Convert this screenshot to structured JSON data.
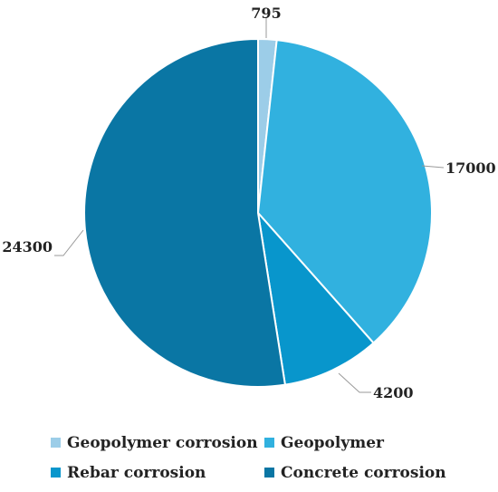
{
  "chart_data": {
    "type": "pie",
    "title": "",
    "categories": [
      "Geopolymer corrosion",
      "Geopolymer",
      "Rebar corrosion",
      "Concrete corrosion"
    ],
    "values": [
      795,
      17000,
      4200,
      24300
    ],
    "value_labels": [
      "795",
      "17000",
      "4200",
      "24300"
    ],
    "colors": [
      "#9ccde8",
      "#31b1df",
      "#0896cc",
      "#0a76a4"
    ],
    "legend_position": "bottom",
    "start_angle_deg": 0,
    "direction": "clockwise"
  }
}
